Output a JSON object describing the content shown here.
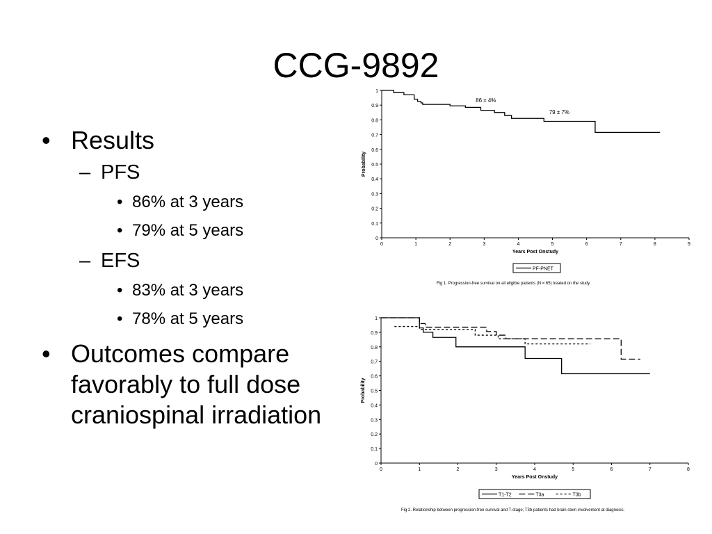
{
  "slide": {
    "title": "CCG-9892",
    "bullets": {
      "results": "Results",
      "pfs": "PFS",
      "pfs_3": "86% at 3 years",
      "pfs_5": "79% at 5 years",
      "efs": "EFS",
      "efs_3": "83% at 3 years",
      "efs_5": "78% at 5 years",
      "outcome_lines": [
        "Outcomes compare",
        "favorably to full dose",
        "craniospinal irradiation"
      ]
    },
    "bullet_glyph": "•",
    "dash_glyph": "–"
  },
  "chart_data": [
    {
      "type": "line",
      "step": true,
      "xlabel": "Years Post Onstudy",
      "ylabel": "Probability",
      "xlim": [
        0,
        9
      ],
      "ylim": [
        0,
        1
      ],
      "xticks": [
        0,
        1,
        2,
        3,
        4,
        5,
        6,
        7,
        8,
        9
      ],
      "yticks": [
        0,
        0.1,
        0.2,
        0.3,
        0.4,
        0.5,
        0.6,
        0.7,
        0.8,
        0.9,
        1
      ],
      "legend": "bottom-center",
      "caption": "Fig 1.    Progression-free survival on all eligible patients (N = 65) treated on the study.",
      "annotations": [
        {
          "text": "86 ± 4%",
          "x": 3.05,
          "y": 0.9
        },
        {
          "text": "79 ± 7%",
          "x": 5.2,
          "y": 0.82
        }
      ],
      "series": [
        {
          "name": "PF-PNET",
          "dash": "solid",
          "x": [
            0,
            0.35,
            0.65,
            0.95,
            1.05,
            1.15,
            1.2,
            2,
            2.45,
            2.9,
            3.3,
            3.6,
            3.8,
            4.75,
            6.25,
            8.15
          ],
          "y": [
            1,
            0.985,
            0.97,
            0.94,
            0.925,
            0.915,
            0.905,
            0.895,
            0.885,
            0.865,
            0.85,
            0.83,
            0.81,
            0.79,
            0.715,
            0.715
          ]
        }
      ]
    },
    {
      "type": "line",
      "step": true,
      "xlabel": "Years Post Onstudy",
      "ylabel": "Probability",
      "xlim": [
        0,
        8
      ],
      "ylim": [
        0,
        1
      ],
      "xticks": [
        0,
        1,
        2,
        3,
        4,
        5,
        6,
        7,
        8
      ],
      "yticks": [
        0,
        0.1,
        0.2,
        0.3,
        0.4,
        0.5,
        0.6,
        0.7,
        0.8,
        0.9,
        1
      ],
      "legend": "bottom-center",
      "caption": "Fig 2.    Relationship between progression-free survival and T-stage; T3b patients had brain stem involvement at diagnosis.",
      "series": [
        {
          "name": "T1-T2",
          "dash": "solid",
          "x": [
            0,
            1,
            1.1,
            1.35,
            1.95,
            3.75,
            4.7,
            7
          ],
          "y": [
            1,
            0.93,
            0.9,
            0.865,
            0.8,
            0.72,
            0.615,
            0.615
          ]
        },
        {
          "name": "T3a",
          "dash": "long",
          "x": [
            0,
            1,
            1.15,
            2.75,
            3,
            3.25,
            6.25,
            6.75
          ],
          "y": [
            1,
            0.96,
            0.935,
            0.905,
            0.88,
            0.855,
            0.715,
            0.715
          ]
        },
        {
          "name": "T3b",
          "dash": "short",
          "x": [
            0.35,
            1,
            2.45,
            3.05,
            3.75,
            5.45
          ],
          "y": [
            0.94,
            0.92,
            0.88,
            0.855,
            0.82,
            0.82
          ]
        }
      ]
    }
  ]
}
